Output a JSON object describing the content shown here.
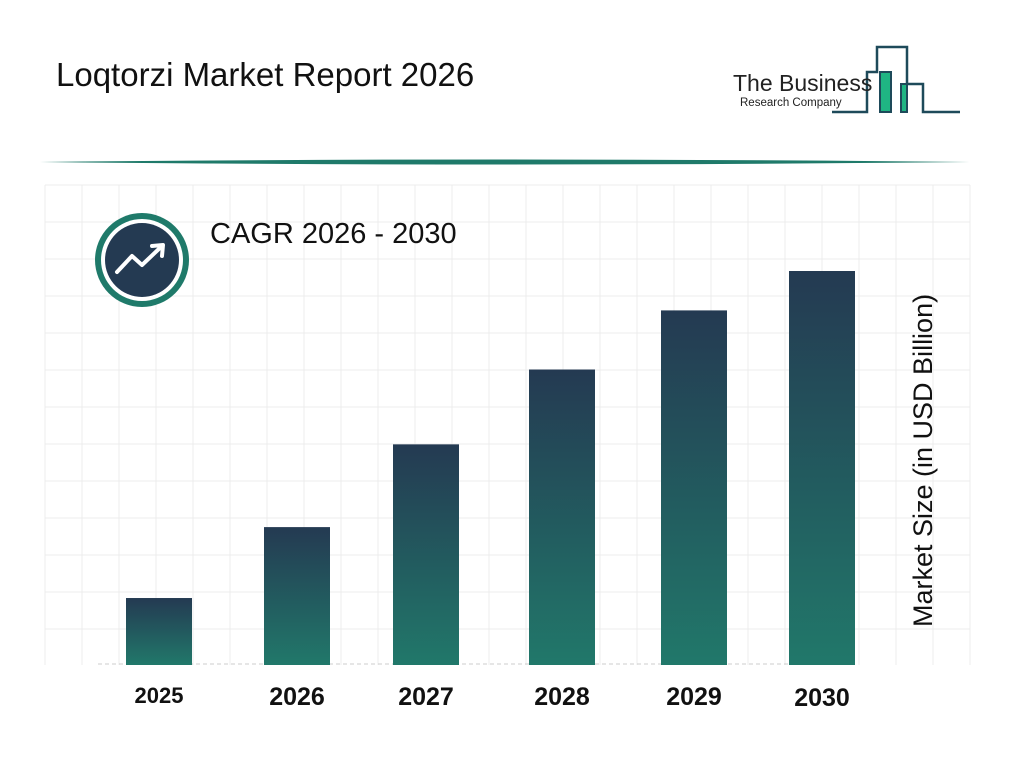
{
  "header": {
    "title": "Loqtorzi Market Report 2026"
  },
  "logo": {
    "line1": "The Business",
    "line2": "Research Company"
  },
  "cagr": {
    "label": "CAGR 2026 - 2030",
    "icon": "trend-up-icon"
  },
  "colors": {
    "bar_top": "#243a52",
    "bar_bottom": "#21786a",
    "accent": "#1f7a6a",
    "logo_green": "#1fb583",
    "logo_dark": "#1e4a5a"
  },
  "chart_data": {
    "type": "bar",
    "title": "",
    "xlabel": "",
    "ylabel": "Market Size (in USD Billion)",
    "categories": [
      "2025",
      "2026",
      "2027",
      "2028",
      "2029",
      "2030"
    ],
    "values": [
      17,
      35,
      56,
      75,
      90,
      100
    ],
    "grid": true,
    "ylim": [
      0,
      100
    ]
  }
}
